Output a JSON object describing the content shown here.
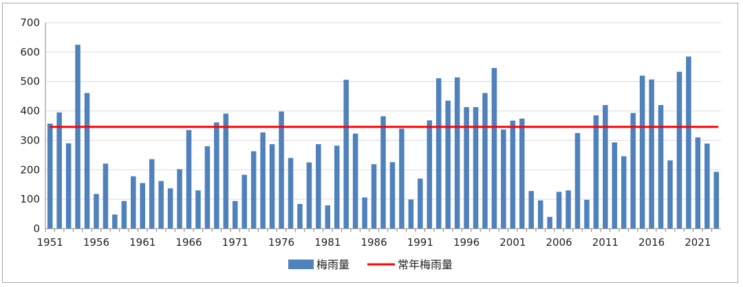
{
  "chart_data": {
    "type": "bar",
    "title": "",
    "xlabel": "",
    "ylabel": "",
    "ylim": [
      0,
      700
    ],
    "yticks": [
      0,
      100,
      200,
      300,
      400,
      500,
      600,
      700
    ],
    "x_tick_labels": [
      "1951",
      "1956",
      "1961",
      "1966",
      "1971",
      "1976",
      "1981",
      "1986",
      "1991",
      "1996",
      "2001",
      "2006",
      "2011",
      "2016",
      "2021"
    ],
    "grid": "horizontal",
    "legend_position": "bottom",
    "categories": [
      1951,
      1952,
      1953,
      1954,
      1955,
      1956,
      1957,
      1958,
      1959,
      1960,
      1961,
      1962,
      1963,
      1964,
      1965,
      1966,
      1967,
      1968,
      1969,
      1970,
      1971,
      1972,
      1973,
      1974,
      1975,
      1976,
      1977,
      1978,
      1979,
      1980,
      1981,
      1982,
      1983,
      1984,
      1985,
      1986,
      1987,
      1988,
      1989,
      1990,
      1991,
      1992,
      1993,
      1994,
      1995,
      1996,
      1997,
      1998,
      1999,
      2000,
      2001,
      2002,
      2003,
      2004,
      2005,
      2006,
      2007,
      2008,
      2009,
      2010,
      2011,
      2012,
      2013,
      2014,
      2015,
      2016,
      2017,
      2018,
      2019,
      2020,
      2021,
      2022,
      2023
    ],
    "series": [
      {
        "name": "梅雨量",
        "color": "#4f81bd",
        "type": "bar",
        "values": [
          357,
          395,
          290,
          625,
          461,
          118,
          221,
          48,
          94,
          178,
          155,
          236,
          162,
          137,
          202,
          335,
          130,
          280,
          361,
          391,
          94,
          183,
          263,
          327,
          287,
          398,
          240,
          84,
          225,
          287,
          79,
          282,
          506,
          323,
          106,
          219,
          382,
          226,
          340,
          99,
          170,
          368,
          511,
          435,
          514,
          413,
          413,
          461,
          546,
          337,
          367,
          374,
          128,
          96,
          40,
          125,
          130,
          325,
          98,
          385,
          420,
          293,
          246,
          393,
          520,
          507,
          420,
          232,
          533,
          585,
          310,
          289,
          193
        ]
      },
      {
        "name": "常年梅雨量",
        "color": "#ff0000",
        "type": "line",
        "value": 346
      }
    ]
  }
}
